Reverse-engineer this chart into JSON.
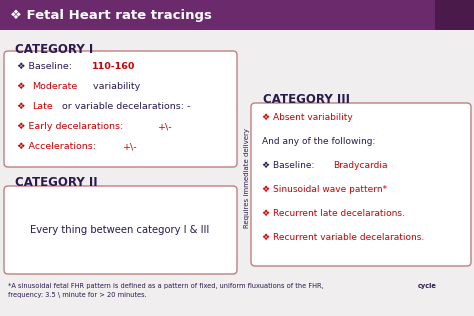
{
  "title": "❖ Fetal Heart rate tracings",
  "bg_color": "#f0eeee",
  "title_bar_color": "#6b2a6b",
  "title_dark_corner": "#4a1a4a",
  "cat_title_color": "#2b1a4f",
  "box_border_color": "#c08080",
  "red_color": "#cc0000",
  "dark_color": "#2b1a4f",
  "cat1_title": "CATEGORY I",
  "cat2_title": "CATEGORY II",
  "cat3_title": "CATEGORY III",
  "cat2_text": "Every thing between category I & III",
  "vertical_label": "Requires immediate delivery",
  "footnote_normal": "*A sinusoidal fetal FHR pattern is defined as a pattern of fixed, uniform fluxuations of the FHR, ",
  "footnote_bold": "cycle",
  "footnote_normal2": "\nfrequency: 3.5 \\ minute for > 20 minutes.",
  "diamond": "❖"
}
